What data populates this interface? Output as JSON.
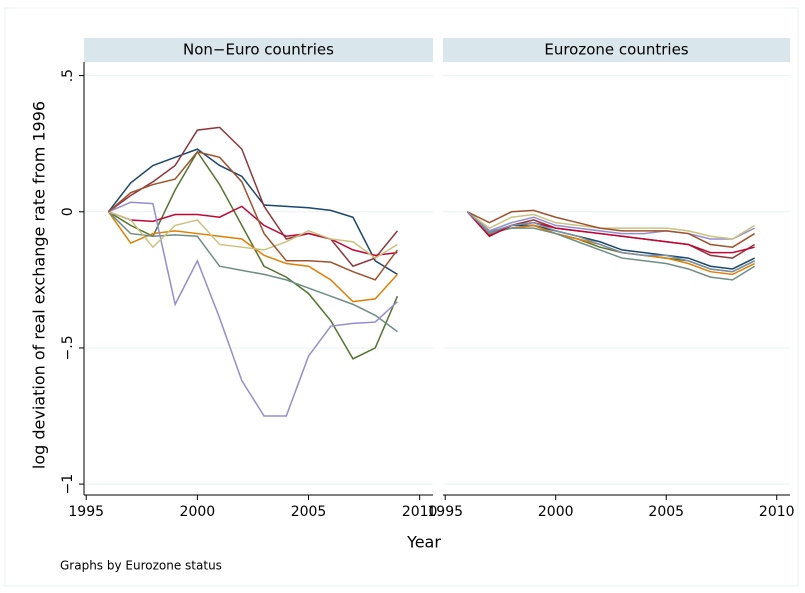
{
  "y_axis_label": "log deviation of real exchange rate from 1996",
  "x_axis_label": "Year",
  "note": "Graphs by Eurozone status",
  "chart_data": [
    {
      "type": "line",
      "title": "Non−Euro countries",
      "grid": true,
      "x": [
        1996,
        1997,
        1998,
        1999,
        2000,
        2001,
        2002,
        2003,
        2004,
        2005,
        2006,
        2007,
        2008,
        2009
      ],
      "xlim": [
        1994.9,
        2010.6
      ],
      "xticks": [
        1995,
        2000,
        2005,
        2010
      ],
      "ylim": [
        -1.04,
        0.55
      ],
      "yticks": [
        {
          "value": -1,
          "label": "−1"
        },
        {
          "value": -0.5,
          "label": "−.5"
        },
        0,
        {
          "value": 0.5,
          "label": ".5"
        }
      ],
      "series": [
        {
          "color": "#1a476f",
          "values": [
            0,
            0.106,
            0.17,
            0.2,
            0.23,
            0.17,
            0.13,
            0.025,
            0.02,
            0.015,
            0.005,
            -0.02,
            -0.18,
            -0.23
          ]
        },
        {
          "color": "#90353b",
          "values": [
            0,
            0.06,
            0.11,
            0.17,
            0.3,
            0.31,
            0.23,
            0.02,
            -0.1,
            -0.08,
            -0.1,
            -0.2,
            -0.17,
            -0.07
          ]
        },
        {
          "color": "#55752f",
          "values": [
            0,
            -0.05,
            -0.09,
            0.08,
            0.22,
            0.1,
            -0.05,
            -0.2,
            -0.24,
            -0.3,
            -0.4,
            -0.54,
            -0.5,
            -0.31
          ]
        },
        {
          "color": "#e37e00",
          "values": [
            0,
            -0.115,
            -0.08,
            -0.07,
            -0.08,
            -0.09,
            -0.1,
            -0.16,
            -0.19,
            -0.2,
            -0.25,
            -0.33,
            -0.32,
            -0.23
          ]
        },
        {
          "color": "#6e8e84",
          "values": [
            0,
            -0.08,
            -0.09,
            -0.085,
            -0.09,
            -0.2,
            -0.215,
            -0.23,
            -0.25,
            -0.28,
            -0.31,
            -0.34,
            -0.38,
            -0.44
          ]
        },
        {
          "color": "#c10534",
          "values": [
            0,
            -0.03,
            -0.035,
            -0.01,
            -0.01,
            -0.02,
            0.02,
            -0.05,
            -0.09,
            -0.08,
            -0.1,
            -0.14,
            -0.16,
            -0.15
          ]
        },
        {
          "color": "#938dd2",
          "values": [
            0,
            0.035,
            0.03,
            -0.34,
            -0.18,
            -0.39,
            -0.62,
            -0.75,
            -0.75,
            -0.53,
            -0.42,
            -0.41,
            -0.405,
            -0.33
          ]
        },
        {
          "color": "#cac27e",
          "values": [
            0,
            -0.03,
            -0.13,
            -0.05,
            -0.03,
            -0.12,
            -0.13,
            -0.14,
            -0.11,
            -0.07,
            -0.1,
            -0.11,
            -0.17,
            -0.12
          ]
        },
        {
          "color": "#a0522d",
          "values": [
            0,
            0.07,
            0.1,
            0.12,
            0.22,
            0.2,
            0.11,
            -0.08,
            -0.18,
            -0.18,
            -0.185,
            -0.22,
            -0.25,
            -0.14
          ]
        }
      ]
    },
    {
      "type": "line",
      "title": "Eurozone countries",
      "grid": true,
      "x": [
        1996,
        1997,
        1998,
        1999,
        2000,
        2001,
        2002,
        2003,
        2004,
        2005,
        2006,
        2007,
        2008,
        2009
      ],
      "xlim": [
        1994.9,
        2010.6
      ],
      "xticks": [
        1995,
        2000,
        2005,
        2010
      ],
      "ylim": [
        -1.04,
        0.55
      ],
      "yticks": [
        {
          "value": -1,
          "label": "−1"
        },
        {
          "value": -0.5,
          "label": "−.5"
        },
        0,
        {
          "value": 0.5,
          "label": ".5"
        }
      ],
      "series": [
        {
          "color": "#1a476f",
          "values": [
            0,
            -0.08,
            -0.05,
            -0.05,
            -0.07,
            -0.09,
            -0.11,
            -0.14,
            -0.15,
            -0.16,
            -0.17,
            -0.2,
            -0.21,
            -0.17
          ]
        },
        {
          "color": "#90353b",
          "values": [
            0,
            -0.085,
            -0.05,
            -0.03,
            -0.06,
            -0.07,
            -0.08,
            -0.09,
            -0.1,
            -0.11,
            -0.12,
            -0.16,
            -0.17,
            -0.12
          ]
        },
        {
          "color": "#55752f",
          "values": [
            0,
            -0.07,
            -0.06,
            -0.05,
            -0.08,
            -0.1,
            -0.13,
            -0.15,
            -0.16,
            -0.17,
            -0.18,
            -0.21,
            -0.22,
            -0.18
          ]
        },
        {
          "color": "#e37e00",
          "values": [
            0,
            -0.08,
            -0.06,
            -0.05,
            -0.08,
            -0.1,
            -0.12,
            -0.15,
            -0.16,
            -0.17,
            -0.19,
            -0.22,
            -0.23,
            -0.19
          ]
        },
        {
          "color": "#6e8e84",
          "values": [
            0,
            -0.08,
            -0.06,
            -0.06,
            -0.08,
            -0.11,
            -0.14,
            -0.17,
            -0.18,
            -0.19,
            -0.21,
            -0.24,
            -0.25,
            -0.2
          ]
        },
        {
          "color": "#c10534",
          "values": [
            0,
            -0.09,
            -0.05,
            -0.04,
            -0.06,
            -0.07,
            -0.08,
            -0.09,
            -0.1,
            -0.11,
            -0.12,
            -0.15,
            -0.15,
            -0.13
          ]
        },
        {
          "color": "#938dd2",
          "values": [
            0,
            -0.07,
            -0.04,
            -0.02,
            -0.05,
            -0.06,
            -0.07,
            -0.08,
            -0.08,
            -0.07,
            -0.08,
            -0.1,
            -0.1,
            -0.06
          ]
        },
        {
          "color": "#cac27e",
          "values": [
            0,
            -0.06,
            -0.02,
            -0.01,
            -0.04,
            -0.05,
            -0.06,
            -0.06,
            -0.06,
            -0.06,
            -0.07,
            -0.09,
            -0.1,
            -0.05
          ]
        },
        {
          "color": "#a0522d",
          "values": [
            0,
            -0.04,
            0,
            0.005,
            -0.02,
            -0.04,
            -0.06,
            -0.07,
            -0.07,
            -0.07,
            -0.08,
            -0.12,
            -0.13,
            -0.08
          ]
        },
        {
          "color": "#7b92a8",
          "values": [
            0,
            -0.075,
            -0.05,
            -0.04,
            -0.07,
            -0.09,
            -0.12,
            -0.15,
            -0.16,
            -0.16,
            -0.18,
            -0.21,
            -0.22,
            -0.18
          ]
        }
      ]
    }
  ]
}
